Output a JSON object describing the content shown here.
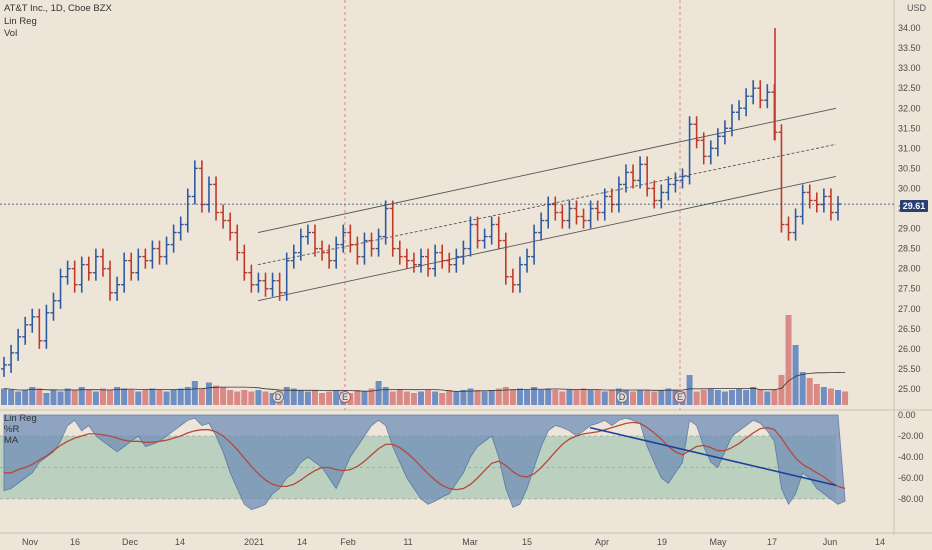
{
  "chart_data": {
    "type": "bar",
    "title": "AT&T Inc., 1D, Cboe BZX",
    "indicators": [
      "Lin Reg",
      "Vol"
    ],
    "lower_pane_labels": [
      "Lin Reg",
      "%R",
      "MA"
    ],
    "currency": "USD",
    "last_price": "29.61",
    "price_axis_ticks": [
      "34.00",
      "33.50",
      "33.00",
      "32.50",
      "32.00",
      "31.50",
      "31.00",
      "30.50",
      "30.00",
      "29.50",
      "29.00",
      "28.50",
      "28.00",
      "27.50",
      "27.00",
      "26.50",
      "26.00",
      "25.50",
      "25.00"
    ],
    "osc_axis_ticks": [
      "0.00",
      "-20.00",
      "-40.00",
      "-60.00",
      "-80.00"
    ],
    "x_ticks": [
      "Nov",
      "16",
      "Dec",
      "14",
      "2021",
      "14",
      "Feb",
      "11",
      "Mar",
      "15",
      "Apr",
      "19",
      "May",
      "17",
      "Jun",
      "14"
    ],
    "y_range": [
      24.6,
      34.5
    ],
    "osc_range": [
      -100,
      0
    ],
    "event_markers": [
      "D",
      "E",
      "D",
      "E"
    ],
    "candles_close_approx": [
      25.6,
      25.9,
      26.3,
      26.6,
      26.8,
      26.2,
      26.9,
      27.2,
      27.8,
      28.0,
      27.6,
      28.1,
      27.9,
      28.3,
      28.0,
      27.4,
      27.6,
      28.2,
      27.9,
      28.3,
      28.2,
      28.5,
      28.3,
      28.6,
      28.9,
      29.1,
      29.8,
      30.5,
      29.6,
      30.1,
      29.4,
      29.2,
      28.9,
      28.4,
      27.9,
      27.6,
      27.7,
      27.5,
      27.7,
      27.4,
      28.2,
      28.4,
      28.8,
      28.9,
      28.5,
      28.4,
      28.2,
      28.6,
      28.9,
      28.6,
      28.3,
      28.7,
      28.5,
      28.8,
      29.5,
      28.5,
      28.3,
      28.2,
      28.1,
      28.3,
      28.0,
      28.4,
      28.2,
      28.1,
      28.3,
      28.5,
      29.1,
      28.7,
      28.8,
      29.1,
      28.7,
      27.8,
      27.6,
      28.1,
      28.3,
      28.9,
      29.2,
      29.6,
      29.4,
      29.2,
      29.5,
      29.3,
      29.2,
      29.5,
      29.4,
      29.8,
      29.6,
      30.1,
      30.4,
      30.2,
      30.6,
      30.0,
      29.7,
      29.9,
      30.1,
      30.2,
      30.3,
      31.6,
      31.2,
      30.8,
      31.0,
      31.3,
      31.5,
      31.9,
      32.0,
      32.3,
      32.5,
      32.2,
      32.4,
      31.4,
      29.1,
      28.9,
      29.3,
      29.9,
      29.7,
      29.6,
      29.8,
      29.4,
      29.61
    ],
    "volume_relative": [
      0.55,
      0.5,
      0.45,
      0.5,
      0.6,
      0.55,
      0.4,
      0.5,
      0.45,
      0.55,
      0.5,
      0.6,
      0.5,
      0.45,
      0.55,
      0.5,
      0.6,
      0.55,
      0.5,
      0.45,
      0.5,
      0.55,
      0.5,
      0.45,
      0.5,
      0.55,
      0.6,
      0.8,
      0.55,
      0.75,
      0.65,
      0.6,
      0.5,
      0.45,
      0.5,
      0.45,
      0.5,
      0.45,
      0.4,
      0.5,
      0.6,
      0.55,
      0.5,
      0.45,
      0.5,
      0.4,
      0.45,
      0.5,
      0.45,
      0.4,
      0.5,
      0.45,
      0.55,
      0.8,
      0.6,
      0.45,
      0.5,
      0.45,
      0.4,
      0.45,
      0.5,
      0.45,
      0.4,
      0.5,
      0.45,
      0.5,
      0.55,
      0.5,
      0.45,
      0.5,
      0.55,
      0.6,
      0.5,
      0.55,
      0.5,
      0.6,
      0.5,
      0.55,
      0.5,
      0.45,
      0.5,
      0.5,
      0.55,
      0.5,
      0.5,
      0.45,
      0.5,
      0.55,
      0.5,
      0.45,
      0.5,
      0.5,
      0.45,
      0.5,
      0.55,
      0.5,
      0.45,
      1.0,
      0.45,
      0.5,
      0.55,
      0.5,
      0.45,
      0.5,
      0.55,
      0.5,
      0.6,
      0.5,
      0.45,
      0.5,
      1.0,
      3.0,
      2.0,
      1.1,
      0.9,
      0.7,
      0.6,
      0.55,
      0.5,
      0.45
    ],
    "percent_r_approx": [
      -72,
      -70,
      -65,
      -60,
      -55,
      -45,
      -40,
      -35,
      -25,
      -10,
      -5,
      -15,
      -10,
      -20,
      -25,
      -30,
      -35,
      -30,
      -25,
      -20,
      -30,
      -28,
      -25,
      -20,
      -15,
      -10,
      -5,
      -3,
      -10,
      -8,
      -20,
      -35,
      -55,
      -70,
      -85,
      -90,
      -88,
      -85,
      -75,
      -70,
      -60,
      -55,
      -45,
      -40,
      -45,
      -50,
      -60,
      -70,
      -55,
      -40,
      -30,
      -20,
      -10,
      -5,
      -10,
      -30,
      -45,
      -60,
      -70,
      -80,
      -85,
      -82,
      -78,
      -75,
      -65,
      -55,
      -40,
      -30,
      -25,
      -20,
      -40,
      -70,
      -88,
      -85,
      -70,
      -50,
      -30,
      -15,
      -10,
      -12,
      -15,
      -20,
      -15,
      -10,
      -8,
      -5,
      -10,
      -5,
      -3,
      -5,
      -8,
      -30,
      -45,
      -60,
      -65,
      -55,
      -45,
      -5,
      -10,
      -30,
      -45,
      -50,
      -35,
      -20,
      -15,
      -10,
      -5,
      -8,
      -15,
      -25,
      -70,
      -85,
      -75,
      -55,
      -60,
      -70,
      -75,
      -80,
      -85,
      -82
    ],
    "ma_approx": [
      -55,
      -55,
      -52,
      -50,
      -47,
      -43,
      -39,
      -34,
      -29,
      -25,
      -22,
      -20,
      -18,
      -18,
      -19,
      -20,
      -22,
      -24,
      -25,
      -25,
      -26,
      -26,
      -25,
      -24,
      -22,
      -20,
      -17,
      -15,
      -14,
      -14,
      -16,
      -20,
      -26,
      -33,
      -41,
      -49,
      -56,
      -62,
      -66,
      -68,
      -68,
      -66,
      -62,
      -57,
      -53,
      -50,
      -50,
      -52,
      -53,
      -52,
      -49,
      -44,
      -38,
      -32,
      -28,
      -28,
      -31,
      -36,
      -42,
      -49,
      -56,
      -62,
      -67,
      -70,
      -71,
      -70,
      -66,
      -60,
      -53,
      -46,
      -44,
      -48,
      -54,
      -58,
      -59,
      -56,
      -50,
      -43,
      -35,
      -28,
      -23,
      -20,
      -18,
      -17,
      -16,
      -14,
      -12,
      -10,
      -8,
      -7,
      -8,
      -12,
      -17,
      -23,
      -30,
      -35,
      -38,
      -34,
      -30,
      -29,
      -31,
      -34,
      -34,
      -31,
      -27,
      -22,
      -17,
      -13,
      -12,
      -14,
      -22,
      -32,
      -41,
      -47,
      -51,
      -55,
      -59,
      -64,
      -68,
      -70
    ]
  },
  "legend": {
    "title": "AT&T Inc., 1D, Cboe BZX",
    "line2": "Lin Reg",
    "line3": "Vol",
    "osc1": "Lin Reg",
    "osc2": "%R",
    "osc3": "MA"
  },
  "axis": {
    "currency": "USD",
    "last_price": "29.61"
  },
  "colors": {
    "background": "#ede6d8",
    "up": "#2f5aa0",
    "down": "#c0392b",
    "vol_up": "#6f8fc4",
    "vol_down": "#d98a86",
    "band": "#a9c8b6",
    "osc_fill": "#6f8eb8",
    "ma_line": "#b24a3d"
  }
}
